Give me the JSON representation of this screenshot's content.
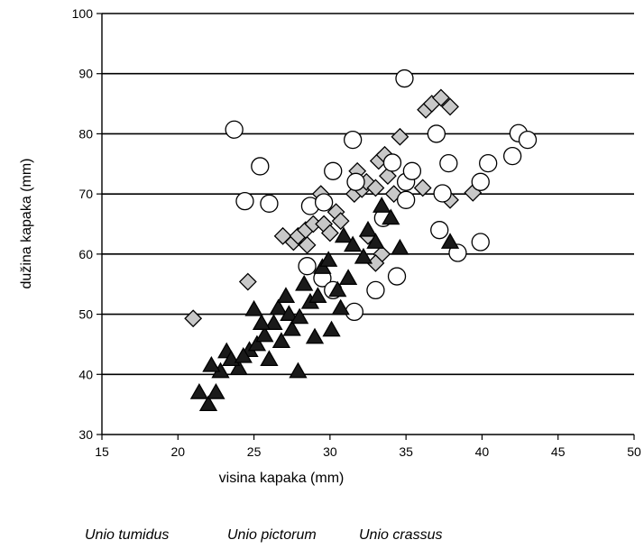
{
  "chart_data": {
    "type": "scatter",
    "xlabel": "visina kapaka (mm)",
    "ylabel": "dužina kapaka (mm)",
    "xlim": [
      15,
      50
    ],
    "ylim": [
      30,
      100
    ],
    "xticks": [
      15,
      20,
      25,
      30,
      35,
      40,
      45,
      50
    ],
    "yticks": [
      30,
      40,
      50,
      60,
      70,
      80,
      90,
      100
    ],
    "grid": "horizontal",
    "legend": [
      "Unio tumidus",
      "Unio pictorum",
      "Unio crassus"
    ],
    "series": [
      {
        "name": "Unio tumidus",
        "marker": "diamond",
        "color": "#c8c8c8",
        "points": [
          [
            21.0,
            49.3
          ],
          [
            24.6,
            55.4
          ],
          [
            26.9,
            63.0
          ],
          [
            27.6,
            62.0
          ],
          [
            27.9,
            63.0
          ],
          [
            28.4,
            64.0
          ],
          [
            28.5,
            61.5
          ],
          [
            28.9,
            65.0
          ],
          [
            29.4,
            70.0
          ],
          [
            29.6,
            65.0
          ],
          [
            30.0,
            63.5
          ],
          [
            30.4,
            67.0
          ],
          [
            30.7,
            65.5
          ],
          [
            31.6,
            70.0
          ],
          [
            31.8,
            73.8
          ],
          [
            32.1,
            70.8
          ],
          [
            32.4,
            72.0
          ],
          [
            33.0,
            71.0
          ],
          [
            33.2,
            75.5
          ],
          [
            33.6,
            76.5
          ],
          [
            33.8,
            73.0
          ],
          [
            34.2,
            70.0
          ],
          [
            34.6,
            79.5
          ],
          [
            36.1,
            71.0
          ],
          [
            36.3,
            84.0
          ],
          [
            36.7,
            85.0
          ],
          [
            37.3,
            86.0
          ],
          [
            37.9,
            84.5
          ],
          [
            37.9,
            69.0
          ],
          [
            39.4,
            70.2
          ],
          [
            33.4,
            60.0
          ],
          [
            32.5,
            63.0
          ],
          [
            33.0,
            58.5
          ]
        ]
      },
      {
        "name": "Unio pictorum",
        "marker": "circle",
        "color": "#ffffff",
        "points": [
          [
            23.7,
            80.7
          ],
          [
            24.4,
            68.8
          ],
          [
            25.4,
            74.6
          ],
          [
            26.0,
            68.4
          ],
          [
            28.7,
            68.0
          ],
          [
            29.6,
            68.6
          ],
          [
            30.2,
            73.8
          ],
          [
            31.5,
            79.0
          ],
          [
            31.6,
            50.4
          ],
          [
            31.7,
            72.0
          ],
          [
            33.0,
            54.0
          ],
          [
            33.5,
            66.0
          ],
          [
            34.1,
            75.2
          ],
          [
            34.4,
            56.3
          ],
          [
            34.9,
            89.2
          ],
          [
            35.0,
            72.0
          ],
          [
            35.0,
            69.0
          ],
          [
            35.4,
            73.8
          ],
          [
            37.0,
            80.0
          ],
          [
            37.2,
            64.0
          ],
          [
            37.4,
            70.1
          ],
          [
            37.8,
            75.1
          ],
          [
            38.4,
            60.2
          ],
          [
            39.9,
            72.0
          ],
          [
            39.9,
            62.0
          ],
          [
            40.4,
            75.1
          ],
          [
            42.0,
            76.3
          ],
          [
            42.4,
            80.1
          ],
          [
            43.0,
            79.0
          ],
          [
            29.5,
            56.0
          ],
          [
            28.5,
            58.0
          ],
          [
            30.2,
            54.0
          ]
        ]
      },
      {
        "name": "Unio crassus",
        "marker": "triangle",
        "color": "#1a1a1a",
        "points": [
          [
            21.4,
            37.0
          ],
          [
            22.0,
            35.0
          ],
          [
            22.5,
            37.0
          ],
          [
            22.8,
            40.5
          ],
          [
            23.2,
            43.8
          ],
          [
            24.0,
            41.0
          ],
          [
            24.7,
            44.0
          ],
          [
            25.0,
            50.8
          ],
          [
            25.2,
            45.0
          ],
          [
            25.7,
            46.5
          ],
          [
            26.0,
            42.5
          ],
          [
            26.3,
            48.5
          ],
          [
            26.6,
            51.0
          ],
          [
            27.1,
            53.0
          ],
          [
            27.3,
            50.0
          ],
          [
            27.5,
            47.5
          ],
          [
            27.9,
            40.5
          ],
          [
            28.3,
            55.0
          ],
          [
            28.7,
            52.0
          ],
          [
            29.0,
            46.2
          ],
          [
            29.2,
            53.0
          ],
          [
            29.5,
            57.8
          ],
          [
            29.9,
            59.0
          ],
          [
            30.1,
            47.4
          ],
          [
            30.5,
            54.0
          ],
          [
            30.9,
            63.0
          ],
          [
            31.2,
            56.0
          ],
          [
            31.5,
            61.5
          ],
          [
            32.2,
            59.5
          ],
          [
            32.5,
            64.0
          ],
          [
            33.0,
            62.0
          ],
          [
            33.4,
            68.0
          ],
          [
            34.0,
            66.0
          ],
          [
            34.6,
            61.0
          ],
          [
            37.9,
            62.0
          ],
          [
            22.2,
            41.5
          ],
          [
            23.5,
            42.5
          ],
          [
            24.3,
            43.0
          ],
          [
            26.8,
            45.5
          ],
          [
            28.0,
            49.5
          ],
          [
            30.7,
            51.0
          ],
          [
            25.5,
            48.5
          ]
        ]
      }
    ]
  }
}
